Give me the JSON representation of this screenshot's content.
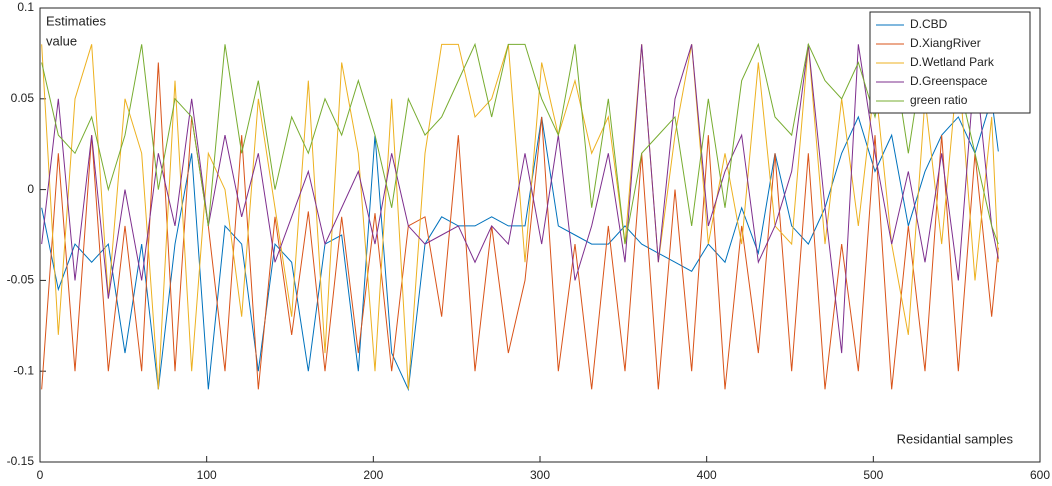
{
  "chart_data": {
    "type": "line",
    "annotations": [
      "Estimaties",
      "value",
      "Residantial samples"
    ],
    "x": [
      1,
      11,
      21,
      31,
      41,
      51,
      61,
      71,
      81,
      91,
      101,
      111,
      121,
      131,
      141,
      151,
      161,
      171,
      181,
      191,
      201,
      211,
      221,
      231,
      241,
      251,
      261,
      271,
      281,
      291,
      301,
      311,
      321,
      331,
      341,
      351,
      361,
      371,
      381,
      391,
      401,
      411,
      421,
      431,
      441,
      451,
      461,
      471,
      481,
      491,
      501,
      511,
      521,
      531,
      541,
      551,
      561,
      571,
      575
    ],
    "series": [
      {
        "name": "D.CBD",
        "color": "#0072BD",
        "values": [
          -0.01,
          -0.055,
          -0.03,
          -0.04,
          -0.03,
          -0.09,
          -0.03,
          -0.11,
          -0.03,
          0.02,
          -0.11,
          -0.02,
          -0.03,
          -0.1,
          -0.03,
          -0.04,
          -0.1,
          -0.03,
          -0.025,
          -0.1,
          0.03,
          -0.09,
          -0.11,
          -0.03,
          -0.015,
          -0.02,
          -0.02,
          -0.015,
          -0.02,
          -0.02,
          0.04,
          -0.02,
          -0.025,
          -0.03,
          -0.03,
          -0.02,
          -0.03,
          -0.035,
          -0.04,
          -0.045,
          -0.03,
          -0.04,
          -0.01,
          -0.035,
          0.02,
          -0.02,
          -0.03,
          -0.01,
          0.02,
          0.04,
          0.01,
          0.03,
          -0.02,
          0.01,
          0.03,
          0.04,
          0.02,
          0.05,
          0.021
        ]
      },
      {
        "name": "D.XiangRiver",
        "color": "#D95319",
        "values": [
          -0.11,
          0.02,
          -0.1,
          0.03,
          -0.1,
          -0.02,
          -0.1,
          0.07,
          -0.1,
          0.04,
          -0.02,
          -0.1,
          0.03,
          -0.11,
          -0.015,
          -0.08,
          -0.012,
          -0.1,
          -0.015,
          -0.09,
          -0.013,
          -0.1,
          -0.02,
          -0.015,
          -0.07,
          0.03,
          -0.1,
          -0.02,
          -0.09,
          -0.05,
          0.04,
          -0.1,
          -0.03,
          -0.11,
          -0.02,
          -0.1,
          0.02,
          -0.11,
          0.0,
          -0.1,
          0.03,
          -0.11,
          -0.02,
          -0.09,
          0.02,
          -0.1,
          0.02,
          -0.11,
          -0.03,
          -0.1,
          0.03,
          -0.11,
          -0.02,
          -0.1,
          0.03,
          -0.1,
          0.02,
          -0.07,
          -0.032
        ]
      },
      {
        "name": "D.Wetland Park",
        "color": "#EDB120",
        "values": [
          0.08,
          -0.08,
          0.05,
          0.08,
          -0.06,
          0.05,
          0.02,
          -0.11,
          0.06,
          -0.1,
          0.02,
          0.0,
          -0.07,
          0.05,
          -0.01,
          -0.07,
          0.06,
          -0.09,
          0.07,
          0.02,
          -0.1,
          0.05,
          -0.11,
          0.02,
          0.08,
          0.08,
          0.04,
          0.05,
          0.08,
          -0.04,
          0.07,
          0.03,
          0.06,
          0.02,
          0.04,
          -0.03,
          0.08,
          -0.04,
          0.03,
          0.08,
          -0.03,
          0.02,
          -0.03,
          0.07,
          -0.02,
          -0.03,
          0.08,
          -0.03,
          0.05,
          -0.02,
          0.06,
          -0.03,
          -0.08,
          0.05,
          -0.03,
          0.07,
          -0.05,
          0.04,
          -0.04
        ]
      },
      {
        "name": "D.Greenspace",
        "color": "#7E2F8E",
        "values": [
          -0.03,
          0.05,
          -0.05,
          0.03,
          -0.06,
          0.0,
          -0.05,
          0.02,
          -0.02,
          0.05,
          -0.02,
          0.03,
          -0.015,
          0.02,
          -0.04,
          -0.015,
          0.01,
          -0.03,
          -0.01,
          0.01,
          -0.03,
          0.02,
          -0.02,
          -0.03,
          -0.025,
          -0.02,
          -0.04,
          -0.02,
          -0.03,
          0.02,
          -0.03,
          0.03,
          -0.05,
          -0.02,
          0.02,
          -0.04,
          0.08,
          -0.04,
          0.05,
          0.08,
          -0.02,
          0.01,
          0.03,
          -0.04,
          -0.02,
          0.01,
          0.08,
          -0.01,
          -0.09,
          0.08,
          0.02,
          -0.03,
          0.01,
          -0.04,
          0.02,
          -0.05,
          0.07,
          -0.02,
          -0.038
        ]
      },
      {
        "name": "green ratio",
        "color": "#77AC30",
        "values": [
          0.07,
          0.03,
          0.02,
          0.04,
          0.0,
          0.03,
          0.08,
          0.0,
          0.05,
          0.04,
          -0.02,
          0.08,
          0.02,
          0.06,
          0.0,
          0.04,
          0.02,
          0.05,
          0.03,
          0.06,
          0.03,
          -0.01,
          0.05,
          0.03,
          0.04,
          0.06,
          0.08,
          0.04,
          0.08,
          0.08,
          0.05,
          0.03,
          0.08,
          -0.01,
          0.05,
          -0.03,
          0.02,
          0.03,
          0.04,
          -0.02,
          0.05,
          -0.01,
          0.06,
          0.08,
          0.04,
          0.03,
          0.08,
          0.06,
          0.05,
          0.07,
          0.04,
          0.08,
          0.02,
          0.08,
          0.05,
          0.06,
          0.02,
          -0.02,
          -0.03
        ]
      }
    ],
    "xlim": [
      0,
      600
    ],
    "xticks": [
      0,
      100,
      200,
      300,
      400,
      500,
      600
    ],
    "ylim": [
      -0.15,
      0.1
    ],
    "yticks": [
      -0.15,
      -0.1,
      -0.05,
      0,
      0.05,
      0.1
    ],
    "legend": "northeast"
  }
}
